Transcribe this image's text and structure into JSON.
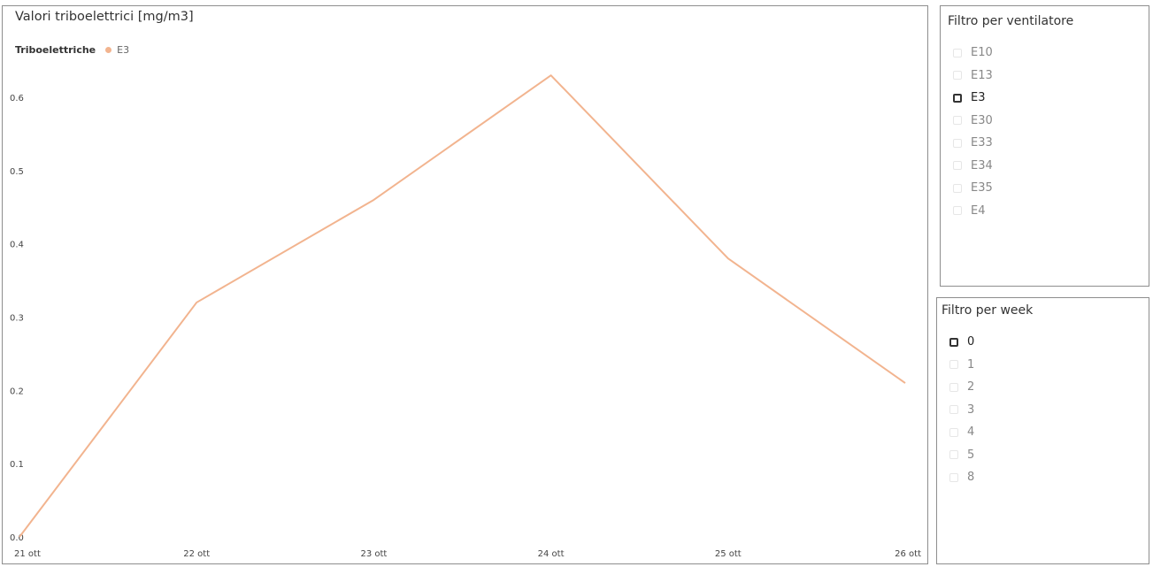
{
  "chart_data": {
    "type": "line",
    "title": "Valori triboelettrici [mg/m3]",
    "legend_label": "Triboelettriche",
    "legend_position": "top-left",
    "categories": [
      "21 ott",
      "22 ott",
      "23 ott",
      "24 ott",
      "25 ott",
      "26 ott"
    ],
    "series": [
      {
        "name": "E3",
        "values": [
          0.0,
          0.32,
          0.46,
          0.63,
          0.38,
          0.21
        ],
        "color": "#f2b48f"
      }
    ],
    "yticks": [
      "0.0",
      "0.1",
      "0.2",
      "0.3",
      "0.4",
      "0.5",
      "0.6"
    ],
    "ylim": [
      0,
      0.6
    ],
    "grid": false,
    "xlabel": "",
    "ylabel": ""
  },
  "slicers": {
    "fan": {
      "title": "Filtro per ventilatore",
      "items": [
        "E10",
        "E13",
        "E3",
        "E30",
        "E33",
        "E34",
        "E35",
        "E4"
      ],
      "selected": "E3"
    },
    "week": {
      "title": "Filtro per week",
      "items": [
        "0",
        "1",
        "2",
        "3",
        "4",
        "5",
        "8"
      ],
      "selected": "0"
    }
  }
}
